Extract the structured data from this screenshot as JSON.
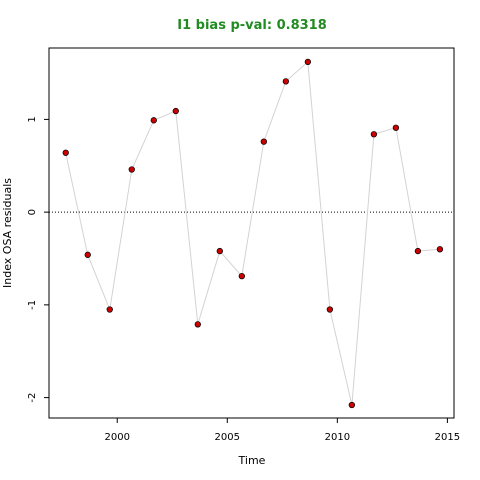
{
  "chart_data": {
    "type": "scatter",
    "title": "I1 bias p-val: 0.8318",
    "title_color": "#228B22",
    "xlabel": "Time",
    "ylabel": "Index OSA residuals",
    "xlim": [
      1996.9,
      2015.3
    ],
    "ylim": [
      -2.22,
      1.77
    ],
    "x_ticks": [
      2000,
      2005,
      2010,
      2015
    ],
    "x_tick_labels": [
      "2000",
      "2005",
      "2010",
      "2015"
    ],
    "y_ticks": [
      -2,
      -1,
      0,
      1
    ],
    "y_tick_labels": [
      "-2",
      "-1",
      "0",
      "1"
    ],
    "reference_line": {
      "y": 0,
      "style": "dotted"
    },
    "grid": false,
    "point_color": "#CC0000",
    "line_color": "#D3D3D3",
    "series": [
      {
        "x": [
          1997.66,
          1998.66,
          1999.66,
          2000.66,
          2001.66,
          2002.66,
          2003.66,
          2004.66,
          2005.66,
          2006.66,
          2007.66,
          2008.66,
          2009.66,
          2010.66,
          2011.66,
          2012.66,
          2013.66,
          2014.66
        ],
        "values": [
          0.64,
          -0.46,
          -1.05,
          0.46,
          0.99,
          1.09,
          -1.21,
          -0.42,
          -0.69,
          0.76,
          1.41,
          1.62,
          -1.05,
          -2.08,
          0.84,
          0.91,
          -0.42,
          -0.4
        ]
      }
    ]
  }
}
